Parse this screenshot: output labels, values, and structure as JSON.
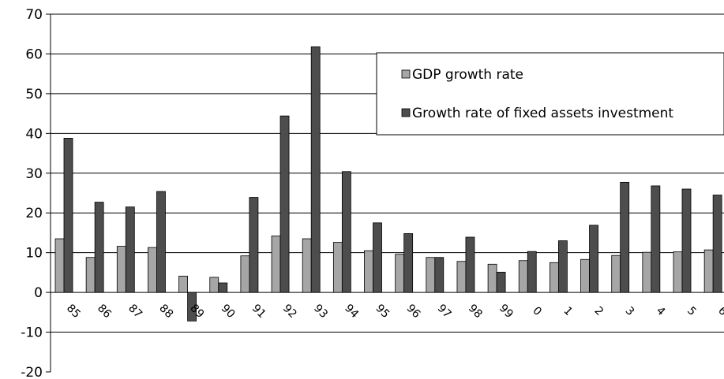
{
  "chart_data": {
    "type": "bar",
    "categories": [
      "85",
      "86",
      "87",
      "88",
      "89",
      "90",
      "91",
      "92",
      "93",
      "94",
      "95",
      "96",
      "97",
      "98",
      "99",
      "0",
      "1",
      "2",
      "3",
      "4",
      "5",
      "6"
    ],
    "series": [
      {
        "name": "GDP growth rate",
        "color": "#a6a6a6",
        "values": [
          13.5,
          8.8,
          11.6,
          11.3,
          4.1,
          3.8,
          9.2,
          14.2,
          13.5,
          12.6,
          10.5,
          9.6,
          8.8,
          7.8,
          7.1,
          8.0,
          7.5,
          8.3,
          9.3,
          10.1,
          10.2,
          10.7
        ]
      },
      {
        "name": "Growth rate of fixed assets investment",
        "color": "#4d4d4d",
        "values": [
          38.8,
          22.7,
          21.5,
          25.4,
          -7.2,
          2.4,
          23.9,
          44.4,
          61.8,
          30.4,
          17.5,
          14.8,
          8.8,
          13.9,
          5.1,
          10.3,
          13.0,
          16.9,
          27.7,
          26.8,
          26.0,
          24.5
        ]
      }
    ],
    "yticks": [
      "70",
      "60",
      "50",
      "40",
      "30",
      "20",
      "10",
      "0",
      "-10",
      "-20"
    ],
    "ylim": [
      -20,
      70
    ],
    "grid": true,
    "legend_position": "top-right"
  }
}
